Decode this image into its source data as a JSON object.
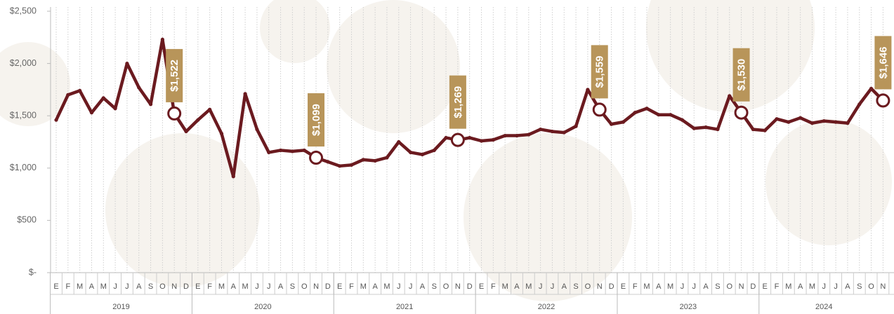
{
  "chart_data": {
    "type": "line",
    "categories": [
      "E",
      "F",
      "M",
      "A",
      "M",
      "J",
      "J",
      "A",
      "S",
      "O",
      "N",
      "D",
      "E",
      "F",
      "M",
      "A",
      "M",
      "J",
      "J",
      "A",
      "S",
      "O",
      "N",
      "D",
      "E",
      "F",
      "M",
      "A",
      "M",
      "J",
      "J",
      "A",
      "S",
      "O",
      "N",
      "D",
      "E",
      "F",
      "M",
      "A",
      "M",
      "J",
      "J",
      "A",
      "S",
      "O",
      "N",
      "D",
      "E",
      "F",
      "M",
      "A",
      "M",
      "J",
      "J",
      "A",
      "S",
      "O",
      "N",
      "D",
      "E",
      "F",
      "M",
      "A",
      "M",
      "J",
      "J",
      "A",
      "S",
      "O",
      "N"
    ],
    "years": [
      "2019",
      "2020",
      "2021",
      "2022",
      "2023",
      "2024"
    ],
    "values": [
      1460,
      1700,
      1740,
      1530,
      1670,
      1570,
      2000,
      1770,
      1610,
      2230,
      1522,
      1350,
      1460,
      1560,
      1330,
      920,
      1710,
      1370,
      1150,
      1170,
      1160,
      1170,
      1099,
      1060,
      1020,
      1030,
      1080,
      1070,
      1100,
      1250,
      1150,
      1130,
      1170,
      1290,
      1269,
      1290,
      1260,
      1270,
      1310,
      1310,
      1320,
      1370,
      1350,
      1340,
      1400,
      1750,
      1559,
      1420,
      1440,
      1530,
      1570,
      1510,
      1510,
      1460,
      1380,
      1390,
      1370,
      1690,
      1530,
      1370,
      1360,
      1470,
      1440,
      1480,
      1430,
      1450,
      1440,
      1430,
      1610,
      1760,
      1646
    ],
    "value_labels": [
      null,
      null,
      null,
      null,
      null,
      null,
      null,
      null,
      null,
      null,
      "$1,522",
      null,
      null,
      null,
      null,
      null,
      null,
      null,
      null,
      null,
      null,
      null,
      "$1,099",
      null,
      null,
      null,
      null,
      null,
      null,
      null,
      null,
      null,
      null,
      null,
      "$1,269",
      null,
      null,
      null,
      null,
      null,
      null,
      null,
      null,
      null,
      null,
      null,
      "$1,559",
      null,
      null,
      null,
      null,
      null,
      null,
      null,
      null,
      null,
      null,
      null,
      "$1,530",
      null,
      null,
      null,
      null,
      null,
      null,
      null,
      null,
      null,
      null,
      null,
      "$1,646"
    ],
    "color": "#6b1a1f",
    "label_color": "#b8955a",
    "ylim": [
      0,
      2500
    ],
    "yticks": [
      {
        "value": 0,
        "label": "$-"
      },
      {
        "value": 500,
        "label": "$500"
      },
      {
        "value": 1000,
        "label": "$1,000"
      },
      {
        "value": 1500,
        "label": "$1,500"
      },
      {
        "value": 2000,
        "label": "$2,000"
      },
      {
        "value": 2500,
        "label": "$2,500"
      }
    ],
    "grid": true
  }
}
